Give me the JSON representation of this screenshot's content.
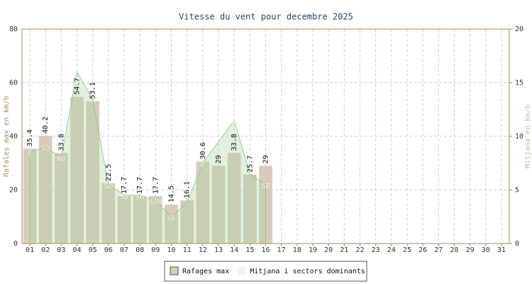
{
  "chart_data": {
    "type": "bar",
    "title": "Vitesse du vent pour decembre 2025",
    "ylabel": "Rafales max en km/h",
    "y2label": "Mitjana en km/h",
    "categories": [
      "01",
      "02",
      "03",
      "04",
      "05",
      "06",
      "07",
      "08",
      "09",
      "10",
      "11",
      "12",
      "13",
      "14",
      "15",
      "16",
      "17",
      "18",
      "19",
      "20",
      "21",
      "22",
      "23",
      "24",
      "25",
      "26",
      "27",
      "28",
      "29",
      "30",
      "31"
    ],
    "series": [
      {
        "name": "Rafages max",
        "color": "#d9cabb",
        "values": [
          35.4,
          40.2,
          33.8,
          54.7,
          53.1,
          22.5,
          17.7,
          17.7,
          17.7,
          14.5,
          16.1,
          30.6,
          29.0,
          33.8,
          25.7,
          29.0,
          null,
          null,
          null,
          null,
          null,
          null,
          null,
          null,
          null,
          null,
          null,
          null,
          null,
          null,
          null
        ]
      },
      {
        "name": "Mitjana i sectors dominants",
        "color": "#a8d8a0",
        "axis": "y2",
        "type": "area",
        "values": [
          8.5,
          9.0,
          8.0,
          16.0,
          13.5,
          5.5,
          4.5,
          4.5,
          4.0,
          2.5,
          3.8,
          7.5,
          9.5,
          11.5,
          6.5,
          5.5,
          null,
          null,
          null,
          null,
          null,
          null,
          null,
          null,
          null,
          null,
          null,
          null,
          null,
          null,
          null
        ],
        "sectors": [
          "E",
          "SO",
          "NO",
          null,
          "SO",
          "SO",
          "SO",
          "SO",
          "SSO",
          "SE",
          null,
          "E",
          null,
          "E",
          null,
          "SE",
          null,
          null,
          null,
          null,
          null,
          null,
          null,
          null,
          null,
          null,
          null,
          null,
          null,
          null,
          null
        ]
      }
    ],
    "ylim": [
      0,
      80
    ],
    "yticks": [
      0,
      20,
      40,
      60,
      80
    ],
    "y2lim": [
      0,
      20
    ],
    "y2ticks": [
      0,
      5,
      10,
      15,
      20
    ],
    "grid": true,
    "legend": "bottom"
  }
}
